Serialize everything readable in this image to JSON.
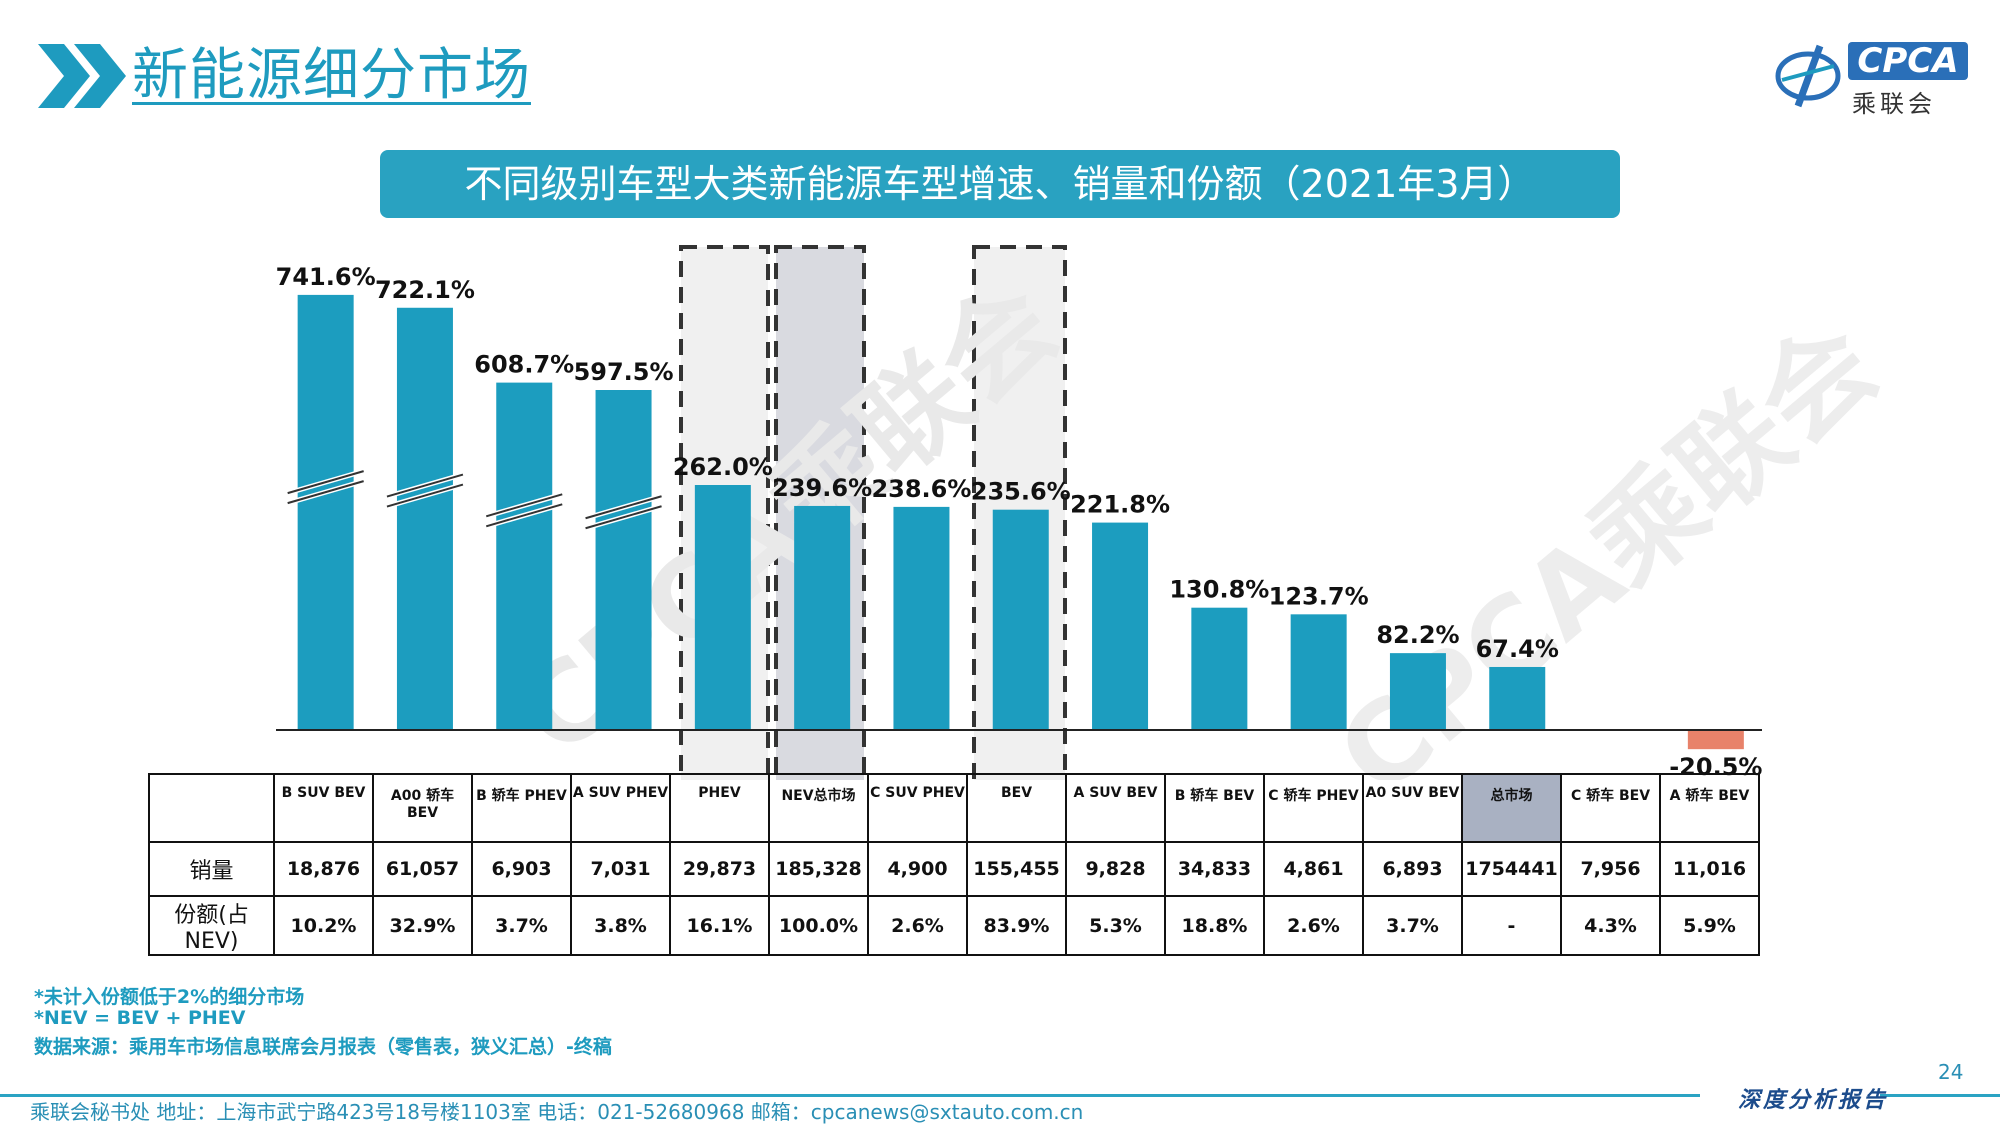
{
  "header": {
    "title": "新能源细分市场",
    "logo_text": "CPCA",
    "logo_subtext": "乘联会",
    "logo_icon": "cpca-emblem-icon"
  },
  "banner_title": "不同级别车型大类新能源车型增速、销量和份额（2021年3月）",
  "chart_data": {
    "type": "bar",
    "title": "不同级别车型大类新能源车型增速、销量和份额（2021年3月）",
    "categories": [
      "B SUV BEV",
      "A00 轿车 BEV",
      "B 轿车 PHEV",
      "A SUV PHEV",
      "PHEV",
      "NEV总市场",
      "C SUV PHEV",
      "BEV",
      "A SUV BEV",
      "B 轿车 BEV",
      "C 轿车 PHEV",
      "A0 SUV BEV",
      "总市场",
      "C 轿车 BEV",
      "A 轿车 BEV"
    ],
    "series": [
      {
        "values": [
          741.6,
          722.1,
          608.7,
          597.5,
          262.0,
          239.6,
          238.6,
          235.6,
          221.8,
          130.8,
          123.7,
          82.2,
          67.4,
          null,
          -20.5
        ]
      }
    ],
    "value_labels": [
      "741.6%",
      "722.1%",
      "608.7%",
      "597.5%",
      "262.0%",
      "239.6%",
      "238.6%",
      "235.6%",
      "221.8%",
      "130.8%",
      "123.7%",
      "82.2%",
      "67.4%",
      "",
      "-20.5%"
    ],
    "broken_axis_bars": [
      "B SUV BEV",
      "A00 轿车 BEV",
      "B 轿车 PHEV",
      "A SUV PHEV"
    ],
    "bar_color": "#1c9dbf",
    "negative_color": "#e8826a",
    "grid": false
  },
  "table": {
    "row_labels": [
      "销量",
      "份额(占NEV)"
    ],
    "sales": [
      "18,876",
      "61,057",
      "6,903",
      "7,031",
      "29,873",
      "185,328",
      "4,900",
      "155,455",
      "9,828",
      "34,833",
      "4,861",
      "6,893",
      "1754441",
      "7,956",
      "11,016"
    ],
    "share": [
      "10.2%",
      "32.9%",
      "3.7%",
      "3.8%",
      "16.1%",
      "100.0%",
      "2.6%",
      "83.9%",
      "5.3%",
      "18.8%",
      "2.6%",
      "3.7%",
      "-",
      "4.3%",
      "5.9%"
    ]
  },
  "notes": [
    "*未计入份额低于2%的细分市场",
    "*NEV = BEV + PHEV",
    "数据来源：乘用车市场信息联席会月报表（零售表，狭义汇总）-终稿"
  ],
  "footer": {
    "page_number": "24",
    "report_label": "深度分析报告",
    "address": "乘联会秘书处   地址：上海市武宁路423号18号楼1103室  电话：021-52680968   邮箱：cpcanews@sxtauto.com.cn"
  },
  "colors": {
    "accent": "#1e9bbf",
    "banner": "#29a2c1",
    "shaded_cell": "#a9b1c2"
  }
}
